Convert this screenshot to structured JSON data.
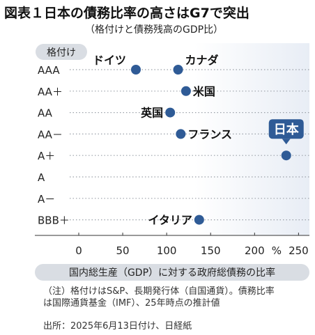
{
  "title": "図表１日本の債務比率の高さはG7で突出",
  "subtitle": "（格付けと債務残高のGDP比）",
  "chart_data": {
    "type": "scatter",
    "ylabel": "格付け",
    "xlabel": "国内総生産（GDP）に対する政府総債務の比率",
    "x_unit": "%",
    "xlim": [
      0,
      260
    ],
    "x_ticks": [
      "0",
      "50",
      "100",
      "150",
      "200",
      "250"
    ],
    "y_categories": [
      "AAA",
      "AA＋",
      "AA",
      "AA－",
      "A＋",
      "A",
      "A－",
      "BBB＋"
    ],
    "grid": true,
    "points": [
      {
        "label": "ドイツ",
        "x": 65,
        "rating": "AAA"
      },
      {
        "label": "カナダ",
        "x": 113,
        "rating": "AAA"
      },
      {
        "label": "米国",
        "x": 122,
        "rating": "AA＋"
      },
      {
        "label": "英国",
        "x": 104,
        "rating": "AA"
      },
      {
        "label": "フランス",
        "x": 116,
        "rating": "AA－"
      },
      {
        "label": "日本",
        "x": 236,
        "rating": "A＋",
        "highlight": true
      },
      {
        "label": "イタリア",
        "x": 137,
        "rating": "BBB＋"
      }
    ],
    "colors": {
      "point": "#2f5b96",
      "highlight_bg": "#2f5b96",
      "highlight_text": "#ffffff",
      "grid": "#9aa0a8"
    }
  },
  "note": "（注）格付けはS&P、長期発行体（自国通貨）。債務比率\nは国際通貨基金（IMF）、25年時点の推計値",
  "source": "出所：2025年6月13日付け、日経紙"
}
